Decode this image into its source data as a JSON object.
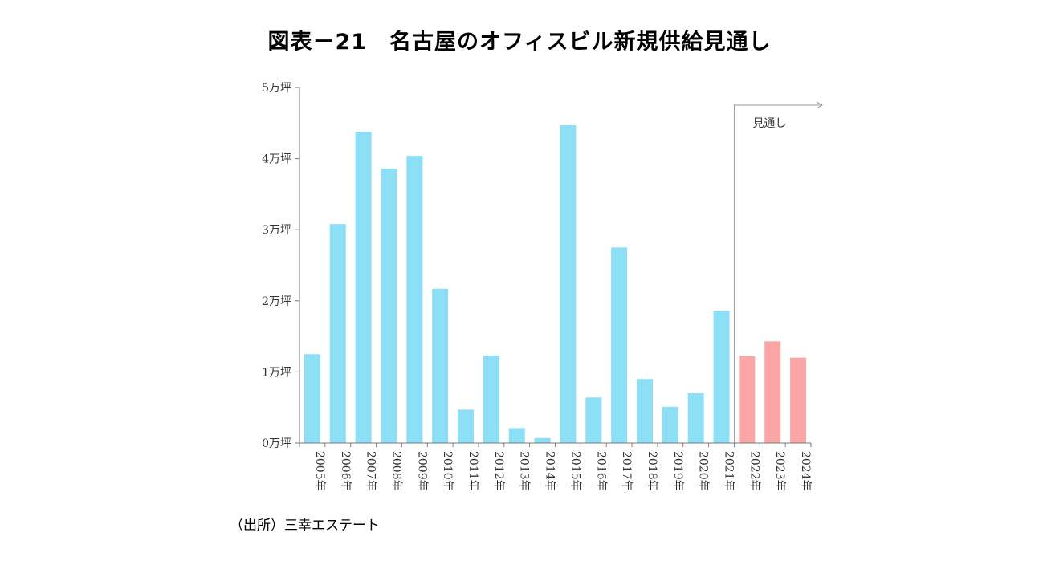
{
  "title": "図表－21　名古屋のオフィスビル新規供給見通し",
  "source": "（出所）三幸エステート",
  "colors": {
    "actual": "#8ddff5",
    "forecast": "#fba6a6",
    "axis": "#777777"
  },
  "chart_data": {
    "type": "bar",
    "title": "図表－21　名古屋のオフィスビル新規供給見通し",
    "xlabel": "",
    "ylabel": "",
    "unit": "万坪",
    "ylim": [
      0,
      5
    ],
    "yticks": [
      0,
      1,
      2,
      3,
      4,
      5
    ],
    "ytick_labels": [
      "0万坪",
      "1万坪",
      "2万坪",
      "3万坪",
      "4万坪",
      "5万坪"
    ],
    "categories": [
      "2005年",
      "2006年",
      "2007年",
      "2008年",
      "2009年",
      "2010年",
      "2011年",
      "2012年",
      "2013年",
      "2014年",
      "2015年",
      "2016年",
      "2017年",
      "2018年",
      "2019年",
      "2020年",
      "2021年",
      "2022年",
      "2023年",
      "2024年"
    ],
    "values": [
      1.25,
      3.08,
      4.38,
      3.86,
      4.04,
      2.17,
      0.47,
      1.23,
      0.21,
      0.07,
      4.47,
      0.64,
      2.75,
      0.9,
      0.51,
      0.7,
      1.86,
      1.22,
      1.43,
      1.2
    ],
    "forecast": [
      false,
      false,
      false,
      false,
      false,
      false,
      false,
      false,
      false,
      false,
      false,
      false,
      false,
      false,
      false,
      false,
      false,
      true,
      true,
      true
    ],
    "annotation": "見通し"
  }
}
